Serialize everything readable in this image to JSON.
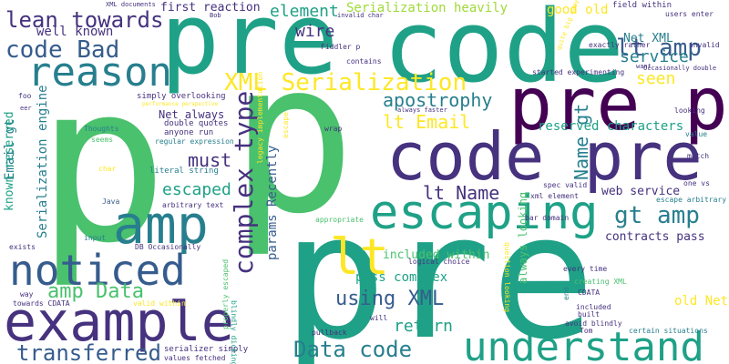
{
  "colors": {
    "background": "#ffffff",
    "palette": [
      "#440154",
      "#46327e",
      "#365c8d",
      "#277f8e",
      "#1fa187",
      "#4ac16d",
      "#a0da39",
      "#fde725"
    ]
  },
  "words": [
    {
      "id": "p-big-left",
      "text": "p",
      "color": "#4ac16d"
    },
    {
      "id": "p-big-center",
      "text": "p",
      "color": "#4ac16d"
    },
    {
      "id": "pre-bottom",
      "text": "pre",
      "color": "#1fa187"
    },
    {
      "id": "pre-top",
      "text": "pre",
      "color": "#1fa187"
    },
    {
      "id": "code-top",
      "text": "code",
      "color": "#1fa187"
    },
    {
      "id": "pre-p",
      "text": "pre p",
      "color": "#440154"
    },
    {
      "id": "code-pre",
      "text": "code pre",
      "color": "#46327e"
    },
    {
      "id": "amp",
      "text": "amp",
      "color": "#277f8e"
    },
    {
      "id": "escaping",
      "text": "escaping",
      "color": "#1fa187"
    },
    {
      "id": "example",
      "text": "example",
      "color": "#46327e"
    },
    {
      "id": "understand",
      "text": "understand",
      "color": "#1fa187"
    },
    {
      "id": "noticed",
      "text": "noticed",
      "color": "#365c8d"
    },
    {
      "id": "reason",
      "text": "reason",
      "color": "#277f8e"
    },
    {
      "id": "lt-yellow",
      "text": "lt",
      "color": "#fde725"
    },
    {
      "id": "xml-serialization",
      "text": "XML Serialization",
      "color": "#fde725"
    },
    {
      "id": "code-bad",
      "text": "code Bad",
      "color": "#365c8d"
    },
    {
      "id": "lean-towards",
      "text": "lean towards",
      "color": "#46327e"
    },
    {
      "id": "complex-type",
      "text": "complex type",
      "color": "#46327e"
    },
    {
      "id": "gt-amp",
      "text": "gt amp",
      "color": "#277f8e"
    },
    {
      "id": "data-code",
      "text": "Data code",
      "color": "#277f8e"
    },
    {
      "id": "transferred",
      "text": "transferred",
      "color": "#365c8d"
    },
    {
      "id": "using-xml",
      "text": "using XML",
      "color": "#365c8d"
    },
    {
      "id": "lt-amp",
      "text": "lt amp",
      "color": "#365c8d"
    },
    {
      "id": "amp-data",
      "text": "amp Data",
      "color": "#4ac16d"
    },
    {
      "id": "lt-name",
      "text": "lt Name",
      "color": "#46327e"
    },
    {
      "id": "name-gt",
      "text": "Name gt",
      "color": "#277f8e"
    },
    {
      "id": "apostrophy",
      "text": "apostrophy",
      "color": "#277f8e"
    },
    {
      "id": "lt-email",
      "text": "lt Email",
      "color": "#fde725"
    },
    {
      "id": "must",
      "text": "must",
      "color": "#46327e"
    },
    {
      "id": "escaped",
      "text": "escaped",
      "color": "#1fa187"
    },
    {
      "id": "return",
      "text": "return",
      "color": "#1fa187"
    },
    {
      "id": "service",
      "text": "service",
      "color": "#277f8e"
    },
    {
      "id": "seen",
      "text": "seen",
      "color": "#fde725"
    },
    {
      "id": "element",
      "text": "element",
      "color": "#1fa187"
    },
    {
      "id": "wire",
      "text": "wire",
      "color": "#46327e"
    },
    {
      "id": "serialization-heavily",
      "text": "Serialization heavily",
      "color": "#a0da39"
    },
    {
      "id": "well-known",
      "text": "well known",
      "color": "#46327e"
    },
    {
      "id": "first-reaction",
      "text": "first reaction",
      "color": "#46327e"
    },
    {
      "id": "good-old",
      "text": "good old",
      "color": "#fde725"
    },
    {
      "id": "net-xml",
      "text": "Net XML",
      "color": "#277f8e"
    },
    {
      "id": "reserved-characters",
      "text": "reserved characters",
      "color": "#1fa187"
    },
    {
      "id": "web-service",
      "text": "web service",
      "color": "#46327e"
    },
    {
      "id": "contracts-pass",
      "text": "contracts pass",
      "color": "#46327e"
    },
    {
      "id": "included-within",
      "text": "included within",
      "color": "#4ac16d"
    },
    {
      "id": "pass-complex",
      "text": "pass complex",
      "color": "#1fa187"
    },
    {
      "id": "old-net",
      "text": "old Net",
      "color": "#fde725"
    },
    {
      "id": "params-recently",
      "text": "params Recently",
      "color": "#365c8d"
    },
    {
      "id": "email-gt",
      "text": "Email gt",
      "color": "#277f8e"
    },
    {
      "id": "serialization-engine",
      "text": "Serialization engine",
      "color": "#277f8e"
    },
    {
      "id": "known-reserved",
      "text": "known reserved",
      "color": "#1fa187"
    },
    {
      "id": "net-always",
      "text": "Net always",
      "color": "#46327e"
    },
    {
      "id": "simply-overlooking",
      "text": "simply overlooking",
      "color": "#46327e"
    },
    {
      "id": "literal-string",
      "text": "literal string",
      "color": "#277f8e"
    },
    {
      "id": "anyone-run",
      "text": "anyone run",
      "color": "#46327e"
    },
    {
      "id": "double-quotes",
      "text": "double quotes",
      "color": "#46327e"
    },
    {
      "id": "regular-expression",
      "text": "regular expression",
      "color": "#277f8e"
    },
    {
      "id": "serializer-simply",
      "text": "serializer simply",
      "color": "#46327e"
    },
    {
      "id": "values-fetched",
      "text": "values fetched",
      "color": "#46327e"
    },
    {
      "id": "thoughts",
      "text": "Thoughts",
      "color": "#277f8e"
    },
    {
      "id": "seems",
      "text": "seems",
      "color": "#4ac16d"
    },
    {
      "id": "char-left",
      "text": "char",
      "color": "#fde725"
    },
    {
      "id": "arbitrary-text",
      "text": "arbitrary text",
      "color": "#46327e"
    },
    {
      "id": "java",
      "text": "Java",
      "color": "#365c8d"
    },
    {
      "id": "input",
      "text": "input",
      "color": "#277f8e"
    },
    {
      "id": "exists",
      "text": "exists",
      "color": "#46327e"
    },
    {
      "id": "db-occasionally",
      "text": "DB Occasionally",
      "color": "#46327e"
    },
    {
      "id": "way",
      "text": "way",
      "color": "#46327e"
    },
    {
      "id": "towards-cdata",
      "text": "towards CDATA",
      "color": "#46327e"
    },
    {
      "id": "valid-within",
      "text": "valid within",
      "color": "#fde725"
    },
    {
      "id": "properly-escaped",
      "text": "properly escaped",
      "color": "#4ac16d"
    },
    {
      "id": "blindly-dicking",
      "text": "blindly dicking",
      "color": "#1fa187"
    },
    {
      "id": "pullback",
      "text": "pullback",
      "color": "#46327e"
    },
    {
      "id": "will",
      "text": "will",
      "color": "#46327e"
    },
    {
      "id": "tom",
      "text": "Tom",
      "color": "#46327e"
    },
    {
      "id": "certain-situations",
      "text": "certain situations",
      "color": "#277f8e"
    },
    {
      "id": "avoid-blindly",
      "text": "avoid blindly",
      "color": "#46327e"
    },
    {
      "id": "built",
      "text": "built",
      "color": "#46327e"
    },
    {
      "id": "cdata",
      "text": "CDATA",
      "color": "#46327e"
    },
    {
      "id": "included",
      "text": "included",
      "color": "#46327e"
    },
    {
      "id": "creating-xml",
      "text": "creating XML",
      "color": "#4ac16d"
    },
    {
      "id": "end",
      "text": "end",
      "color": "#277f8e"
    },
    {
      "id": "every-time",
      "text": "every time",
      "color": "#46327e"
    },
    {
      "id": "question-looking",
      "text": "question looking",
      "color": "#fde725"
    },
    {
      "id": "always-looking",
      "text": "always looking",
      "color": "#4ac16d"
    },
    {
      "id": "logical-choice",
      "text": "logical choice",
      "color": "#46327e"
    },
    {
      "id": "appropriate",
      "text": "appropriate",
      "color": "#4ac16d"
    },
    {
      "id": "bar-domain",
      "text": "bar domain",
      "color": "#46327e"
    },
    {
      "id": "xml-element",
      "text": "xml element",
      "color": "#46327e"
    },
    {
      "id": "spec-valid",
      "text": "spec valid",
      "color": "#46327e"
    },
    {
      "id": "escape-arbitrary",
      "text": "escape arbitrary",
      "color": "#277f8e"
    },
    {
      "id": "one-vs",
      "text": "one vs",
      "color": "#46327e"
    },
    {
      "id": "match",
      "text": "match",
      "color": "#46327e"
    },
    {
      "id": "value",
      "text": "value",
      "color": "#277f8e"
    },
    {
      "id": "looking",
      "text": "looking",
      "color": "#46327e"
    },
    {
      "id": "legacy-implementation",
      "text": "legacy implementation",
      "color": "#fde725"
    },
    {
      "id": "escape",
      "text": "escape",
      "color": "#fde725"
    },
    {
      "id": "wrap",
      "text": "wrap",
      "color": "#46327e"
    },
    {
      "id": "always-faster",
      "text": "always faster",
      "color": "#46327e"
    },
    {
      "id": "contains",
      "text": "contains",
      "color": "#46327e"
    },
    {
      "id": "fiddler-p",
      "text": "Fiddler p",
      "color": "#46327e"
    },
    {
      "id": "started-experimenting",
      "text": "started experimenting",
      "color": "#46327e"
    },
    {
      "id": "exactly-rather",
      "text": "exactly rather",
      "color": "#46327e"
    },
    {
      "id": "field-within",
      "text": "field within",
      "color": "#46327e"
    },
    {
      "id": "invalid-char",
      "text": "invalid char",
      "color": "#46327e"
    },
    {
      "id": "bob",
      "text": "Bob",
      "color": "#46327e"
    },
    {
      "id": "xml-documents",
      "text": "XML documents",
      "color": "#46327e"
    },
    {
      "id": "users-enter",
      "text": "users enter",
      "color": "#46327e"
    },
    {
      "id": "invalid",
      "text": "invalid",
      "color": "#46327e"
    },
    {
      "id": "occasionally-double",
      "text": "Occasionally double",
      "color": "#46327e"
    },
    {
      "id": "want",
      "text": "want",
      "color": "#46327e"
    },
    {
      "id": "foo",
      "text": "foo",
      "color": "#46327e"
    },
    {
      "id": "performance-perspective",
      "text": "performance perspective",
      "color": "#fde725"
    },
    {
      "id": "quite-big-easy",
      "text": "quite big easy",
      "color": "#fde725"
    },
    {
      "id": "eer",
      "text": "eer",
      "color": "#46327e"
    }
  ]
}
